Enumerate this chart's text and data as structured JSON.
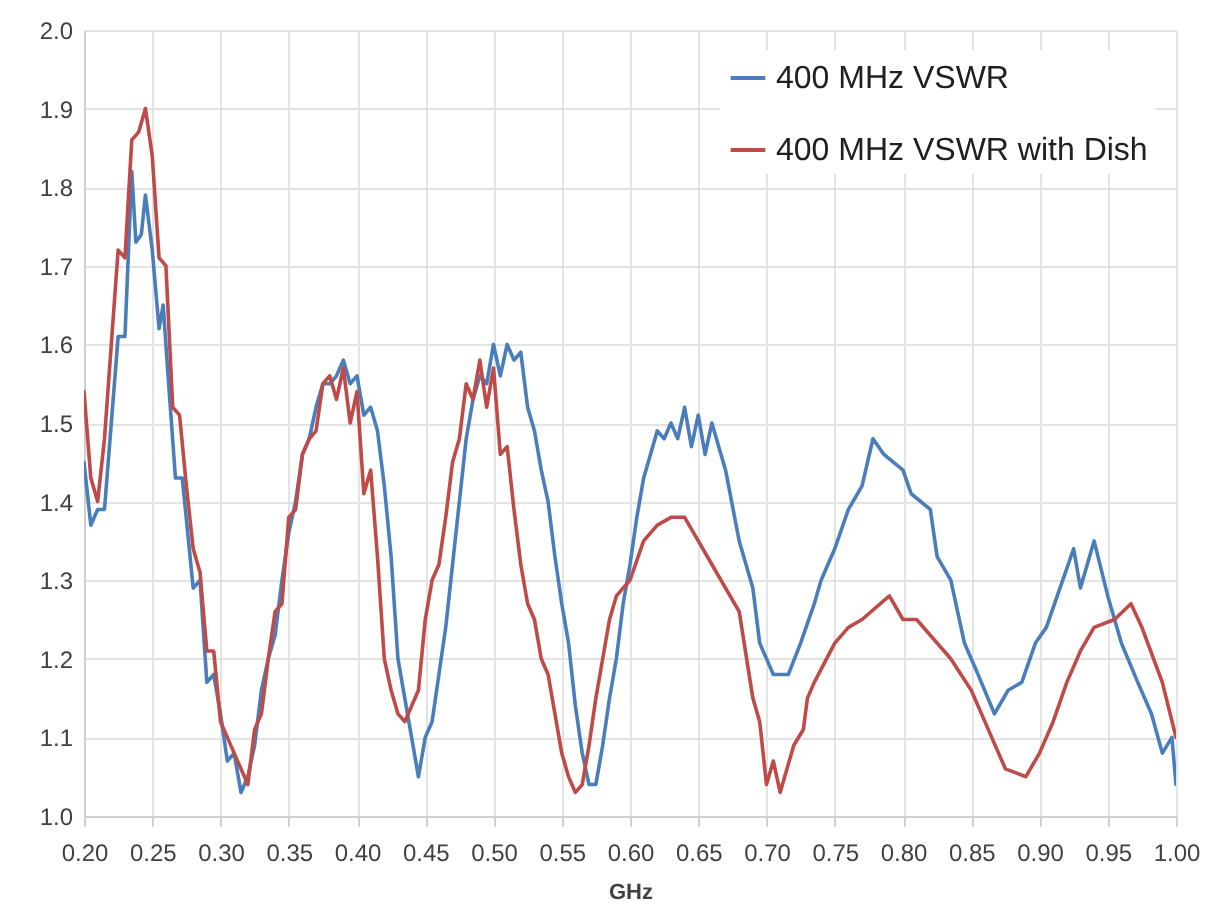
{
  "chart_data": {
    "type": "line",
    "xlabel": "GHz",
    "xlim": [
      0.2,
      1.0
    ],
    "ylim": [
      1.0,
      2.0
    ],
    "xticks": [
      {
        "value": 0.2,
        "label": "0.20"
      },
      {
        "value": 0.25,
        "label": "0.25"
      },
      {
        "value": 0.3,
        "label": "0.30"
      },
      {
        "value": 0.35,
        "label": "0.35"
      },
      {
        "value": 0.4,
        "label": "0.40"
      },
      {
        "value": 0.45,
        "label": "0.45"
      },
      {
        "value": 0.5,
        "label": "0.50"
      },
      {
        "value": 0.55,
        "label": "0.55"
      },
      {
        "value": 0.6,
        "label": "0.60"
      },
      {
        "value": 0.65,
        "label": "0.65"
      },
      {
        "value": 0.7,
        "label": "0.70"
      },
      {
        "value": 0.75,
        "label": "0.75"
      },
      {
        "value": 0.8,
        "label": "0.80"
      },
      {
        "value": 0.85,
        "label": "0.85"
      },
      {
        "value": 0.9,
        "label": "0.90"
      },
      {
        "value": 0.95,
        "label": "0.95"
      },
      {
        "value": 1.0,
        "label": "1.00"
      }
    ],
    "yticks": [
      {
        "value": 1.0,
        "label": "1.0"
      },
      1.1,
      1.2,
      1.3,
      1.4,
      1.5,
      1.6,
      1.7,
      1.8,
      1.9,
      {
        "value": 2.0,
        "label": "2.0"
      }
    ],
    "grid": true,
    "legend": "top right",
    "line_style": "solid",
    "marker": "none",
    "series": [
      {
        "name": "400 MHz VSWR",
        "color": "#4a7ebb",
        "x": [
          0.2,
          0.205,
          0.21,
          0.215,
          0.22,
          0.225,
          0.23,
          0.235,
          0.238,
          0.242,
          0.245,
          0.25,
          0.255,
          0.258,
          0.262,
          0.267,
          0.272,
          0.28,
          0.285,
          0.29,
          0.295,
          0.3,
          0.305,
          0.31,
          0.315,
          0.32,
          0.325,
          0.33,
          0.335,
          0.34,
          0.345,
          0.35,
          0.355,
          0.36,
          0.365,
          0.37,
          0.375,
          0.38,
          0.385,
          0.39,
          0.395,
          0.4,
          0.405,
          0.41,
          0.415,
          0.42,
          0.425,
          0.43,
          0.435,
          0.44,
          0.445,
          0.45,
          0.455,
          0.46,
          0.465,
          0.47,
          0.475,
          0.48,
          0.485,
          0.49,
          0.495,
          0.5,
          0.505,
          0.51,
          0.515,
          0.52,
          0.525,
          0.53,
          0.535,
          0.54,
          0.545,
          0.55,
          0.555,
          0.56,
          0.565,
          0.57,
          0.575,
          0.58,
          0.585,
          0.59,
          0.595,
          0.6,
          0.605,
          0.61,
          0.615,
          0.62,
          0.625,
          0.63,
          0.635,
          0.64,
          0.645,
          0.65,
          0.655,
          0.66,
          0.67,
          0.68,
          0.69,
          0.695,
          0.7,
          0.705,
          0.716,
          0.725,
          0.735,
          0.74,
          0.75,
          0.76,
          0.77,
          0.778,
          0.786,
          0.8,
          0.806,
          0.82,
          0.825,
          0.835,
          0.845,
          0.855,
          0.867,
          0.877,
          0.887,
          0.897,
          0.905,
          0.915,
          0.925,
          0.93,
          0.94,
          0.95,
          0.96,
          0.972,
          0.982,
          0.99,
          0.997,
          1.0
        ],
        "values": [
          1.45,
          1.37,
          1.39,
          1.39,
          1.5,
          1.61,
          1.61,
          1.82,
          1.73,
          1.74,
          1.79,
          1.72,
          1.62,
          1.65,
          1.55,
          1.43,
          1.43,
          1.29,
          1.3,
          1.17,
          1.18,
          1.13,
          1.07,
          1.08,
          1.03,
          1.05,
          1.09,
          1.16,
          1.2,
          1.23,
          1.3,
          1.36,
          1.4,
          1.46,
          1.48,
          1.52,
          1.55,
          1.55,
          1.56,
          1.58,
          1.55,
          1.56,
          1.51,
          1.52,
          1.49,
          1.42,
          1.33,
          1.2,
          1.15,
          1.1,
          1.05,
          1.1,
          1.12,
          1.18,
          1.24,
          1.32,
          1.4,
          1.48,
          1.53,
          1.56,
          1.55,
          1.6,
          1.56,
          1.6,
          1.58,
          1.59,
          1.52,
          1.49,
          1.44,
          1.4,
          1.33,
          1.27,
          1.22,
          1.14,
          1.08,
          1.04,
          1.04,
          1.09,
          1.15,
          1.2,
          1.27,
          1.32,
          1.38,
          1.43,
          1.46,
          1.49,
          1.48,
          1.5,
          1.48,
          1.52,
          1.47,
          1.51,
          1.46,
          1.5,
          1.44,
          1.35,
          1.29,
          1.22,
          1.2,
          1.18,
          1.18,
          1.22,
          1.27,
          1.3,
          1.34,
          1.39,
          1.42,
          1.48,
          1.46,
          1.44,
          1.41,
          1.39,
          1.33,
          1.3,
          1.22,
          1.18,
          1.13,
          1.16,
          1.17,
          1.22,
          1.24,
          1.29,
          1.34,
          1.29,
          1.35,
          1.28,
          1.22,
          1.17,
          1.13,
          1.08,
          1.1,
          1.04
        ]
      },
      {
        "name": "400 MHz VSWR with Dish",
        "color": "#be4b48",
        "x": [
          0.2,
          0.205,
          0.21,
          0.215,
          0.22,
          0.225,
          0.23,
          0.235,
          0.24,
          0.245,
          0.25,
          0.255,
          0.26,
          0.265,
          0.27,
          0.275,
          0.28,
          0.285,
          0.29,
          0.295,
          0.3,
          0.305,
          0.31,
          0.315,
          0.32,
          0.325,
          0.33,
          0.335,
          0.34,
          0.345,
          0.35,
          0.355,
          0.36,
          0.365,
          0.37,
          0.375,
          0.38,
          0.385,
          0.39,
          0.395,
          0.4,
          0.405,
          0.41,
          0.415,
          0.42,
          0.425,
          0.43,
          0.435,
          0.44,
          0.445,
          0.45,
          0.455,
          0.46,
          0.465,
          0.47,
          0.475,
          0.48,
          0.485,
          0.49,
          0.495,
          0.5,
          0.505,
          0.51,
          0.515,
          0.52,
          0.525,
          0.53,
          0.535,
          0.54,
          0.545,
          0.55,
          0.555,
          0.56,
          0.565,
          0.57,
          0.575,
          0.58,
          0.585,
          0.59,
          0.6,
          0.61,
          0.62,
          0.63,
          0.64,
          0.65,
          0.66,
          0.68,
          0.69,
          0.695,
          0.7,
          0.705,
          0.71,
          0.72,
          0.727,
          0.73,
          0.735,
          0.75,
          0.76,
          0.77,
          0.79,
          0.8,
          0.81,
          0.82,
          0.835,
          0.85,
          0.865,
          0.875,
          0.89,
          0.9,
          0.91,
          0.92,
          0.93,
          0.94,
          0.955,
          0.967,
          0.975,
          0.99,
          1.0
        ],
        "values": [
          1.54,
          1.43,
          1.4,
          1.48,
          1.6,
          1.72,
          1.71,
          1.86,
          1.87,
          1.9,
          1.84,
          1.71,
          1.7,
          1.52,
          1.51,
          1.42,
          1.34,
          1.31,
          1.21,
          1.21,
          1.12,
          1.1,
          1.08,
          1.06,
          1.04,
          1.11,
          1.13,
          1.2,
          1.26,
          1.27,
          1.38,
          1.39,
          1.46,
          1.48,
          1.49,
          1.55,
          1.56,
          1.53,
          1.57,
          1.5,
          1.54,
          1.41,
          1.44,
          1.33,
          1.2,
          1.16,
          1.13,
          1.12,
          1.14,
          1.16,
          1.25,
          1.3,
          1.32,
          1.38,
          1.45,
          1.48,
          1.55,
          1.53,
          1.58,
          1.52,
          1.57,
          1.46,
          1.47,
          1.39,
          1.32,
          1.27,
          1.25,
          1.2,
          1.18,
          1.13,
          1.08,
          1.05,
          1.03,
          1.04,
          1.09,
          1.15,
          1.2,
          1.25,
          1.28,
          1.3,
          1.35,
          1.37,
          1.38,
          1.38,
          1.35,
          1.32,
          1.26,
          1.15,
          1.12,
          1.04,
          1.07,
          1.03,
          1.09,
          1.11,
          1.15,
          1.17,
          1.22,
          1.24,
          1.25,
          1.28,
          1.25,
          1.25,
          1.23,
          1.2,
          1.16,
          1.1,
          1.06,
          1.05,
          1.08,
          1.12,
          1.17,
          1.21,
          1.24,
          1.25,
          1.27,
          1.24,
          1.17,
          1.1
        ]
      }
    ]
  }
}
